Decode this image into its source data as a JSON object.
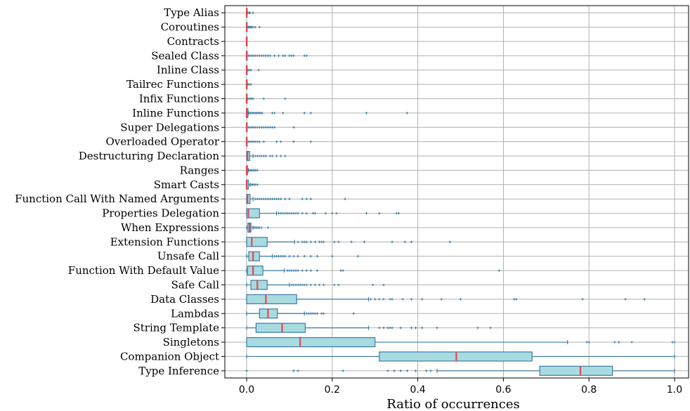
{
  "chart_data": {
    "type": "boxplot",
    "orientation": "horizontal",
    "xlabel": "Ratio of occurrences",
    "ylabel": "",
    "title": "",
    "xlim": [
      -0.05,
      1.03
    ],
    "xticks": [
      0.0,
      0.2,
      0.4,
      0.6,
      0.8,
      1.0
    ],
    "xtick_labels": [
      "0.0",
      "0.2",
      "0.4",
      "0.6",
      "0.8",
      "1.0"
    ],
    "grid": true,
    "colors": {
      "box_fill": "#a8dbe0",
      "box_edge": "#3a7ca5",
      "median": "#e8454d",
      "grid": "#b0b0b0"
    },
    "categories": [
      {
        "name": "Type Alias",
        "q1": 0.0,
        "median": 0.0,
        "q3": 0.0,
        "whisker_low": 0.0,
        "whisker_high": 0.0,
        "outliers": [
          0.003,
          0.006,
          0.008,
          0.015
        ]
      },
      {
        "name": "Coroutines",
        "q1": 0.0,
        "median": 0.0,
        "q3": 0.0,
        "whisker_low": 0.0,
        "whisker_high": 0.0,
        "outliers": [
          0.002,
          0.004,
          0.006,
          0.008,
          0.01,
          0.012,
          0.015,
          0.02,
          0.03
        ]
      },
      {
        "name": "Contracts",
        "q1": 0.0,
        "median": 0.0,
        "q3": 0.0,
        "whisker_low": 0.0,
        "whisker_high": 0.0,
        "outliers": []
      },
      {
        "name": "Sealed Class",
        "q1": 0.0,
        "median": 0.0,
        "q3": 0.0,
        "whisker_low": 0.0,
        "whisker_high": 0.0,
        "outliers": [
          0.004,
          0.008,
          0.012,
          0.016,
          0.02,
          0.025,
          0.03,
          0.035,
          0.04,
          0.045,
          0.05,
          0.055,
          0.065,
          0.075,
          0.085,
          0.09,
          0.1,
          0.105,
          0.11,
          0.135,
          0.14
        ]
      },
      {
        "name": "Inline Class",
        "q1": 0.0,
        "median": 0.0,
        "q3": 0.0,
        "whisker_low": 0.0,
        "whisker_high": 0.0,
        "outliers": [
          0.003,
          0.006,
          0.01,
          0.028
        ]
      },
      {
        "name": "Tailrec Functions",
        "q1": 0.0,
        "median": 0.0,
        "q3": 0.0,
        "whisker_low": 0.0,
        "whisker_high": 0.0,
        "outliers": [
          0.003,
          0.006,
          0.01
        ]
      },
      {
        "name": "Infix Functions",
        "q1": 0.0,
        "median": 0.0,
        "q3": 0.0,
        "whisker_low": 0.0,
        "whisker_high": 0.0,
        "outliers": [
          0.003,
          0.006,
          0.009,
          0.012,
          0.015,
          0.04,
          0.09
        ]
      },
      {
        "name": "Inline Functions",
        "q1": 0.0,
        "median": 0.0,
        "q3": 0.003,
        "whisker_low": 0.0,
        "whisker_high": 0.004,
        "outliers": [
          0.006,
          0.009,
          0.012,
          0.015,
          0.018,
          0.021,
          0.024,
          0.027,
          0.03,
          0.033,
          0.036,
          0.06,
          0.065,
          0.085,
          0.135,
          0.15,
          0.28,
          0.375
        ]
      },
      {
        "name": "Super Delegations",
        "q1": 0.0,
        "median": 0.0,
        "q3": 0.0,
        "whisker_low": 0.0,
        "whisker_high": 0.0,
        "outliers": [
          0.004,
          0.008,
          0.012,
          0.016,
          0.02,
          0.025,
          0.03,
          0.035,
          0.04,
          0.045,
          0.05,
          0.055,
          0.06,
          0.065,
          0.11
        ]
      },
      {
        "name": "Overloaded Operator",
        "q1": 0.0,
        "median": 0.0,
        "q3": 0.0,
        "whisker_low": 0.0,
        "whisker_high": 0.0,
        "outliers": [
          0.004,
          0.008,
          0.012,
          0.016,
          0.02,
          0.025,
          0.03,
          0.04,
          0.07,
          0.08,
          0.11,
          0.15
        ]
      },
      {
        "name": "Destructuring Declaration",
        "q1": 0.0,
        "median": 0.002,
        "q3": 0.007,
        "whisker_low": 0.0,
        "whisker_high": 0.015,
        "outliers": [
          0.02,
          0.025,
          0.03,
          0.035,
          0.04,
          0.045,
          0.055,
          0.06,
          0.07,
          0.08,
          0.09
        ]
      },
      {
        "name": "Ranges",
        "q1": 0.0,
        "median": 0.0,
        "q3": 0.002,
        "whisker_low": 0.0,
        "whisker_high": 0.004,
        "outliers": [
          0.006,
          0.009,
          0.012,
          0.015,
          0.018,
          0.021,
          0.025
        ]
      },
      {
        "name": "Smart Casts",
        "q1": 0.0,
        "median": 0.0,
        "q3": 0.004,
        "whisker_low": 0.0,
        "whisker_high": 0.008,
        "outliers": [
          0.011,
          0.014,
          0.017,
          0.02,
          0.025
        ]
      },
      {
        "name": "Function Call With Named Arguments",
        "q1": 0.0,
        "median": 0.002,
        "q3": 0.008,
        "whisker_low": 0.0,
        "whisker_high": 0.015,
        "outliers": [
          0.02,
          0.025,
          0.03,
          0.035,
          0.04,
          0.045,
          0.05,
          0.055,
          0.06,
          0.065,
          0.07,
          0.075,
          0.08,
          0.09,
          0.1,
          0.13,
          0.14,
          0.15,
          0.23
        ]
      },
      {
        "name": "Properties Delegation",
        "q1": 0.0,
        "median": 0.004,
        "q3": 0.03,
        "whisker_low": 0.0,
        "whisker_high": 0.07,
        "outliers": [
          0.075,
          0.08,
          0.085,
          0.09,
          0.095,
          0.1,
          0.105,
          0.11,
          0.115,
          0.12,
          0.13,
          0.14,
          0.155,
          0.16,
          0.185,
          0.2,
          0.21,
          0.28,
          0.31,
          0.35,
          0.355
        ]
      },
      {
        "name": "When Expressions",
        "q1": 0.003,
        "median": 0.007,
        "q3": 0.01,
        "whisker_low": 0.0,
        "whisker_high": 0.015,
        "outliers": [
          0.018,
          0.021,
          0.024,
          0.027,
          0.03,
          0.035,
          0.05
        ]
      },
      {
        "name": "Extension Functions",
        "q1": 0.0,
        "median": 0.012,
        "q3": 0.048,
        "whisker_low": 0.0,
        "whisker_high": 0.112,
        "outliers": [
          0.12,
          0.13,
          0.135,
          0.14,
          0.15,
          0.16,
          0.17,
          0.175,
          0.18,
          0.205,
          0.215,
          0.245,
          0.275,
          0.34,
          0.37,
          0.385,
          0.475
        ]
      },
      {
        "name": "Unsafe Call",
        "q1": 0.005,
        "median": 0.015,
        "q3": 0.03,
        "whisker_low": 0.0,
        "whisker_high": 0.06,
        "outliers": [
          0.065,
          0.07,
          0.075,
          0.08,
          0.085,
          0.09,
          0.1,
          0.11,
          0.12,
          0.135,
          0.15,
          0.165,
          0.2,
          0.26
        ]
      },
      {
        "name": "Function With Default Value",
        "q1": 0.002,
        "median": 0.015,
        "q3": 0.038,
        "whisker_low": 0.0,
        "whisker_high": 0.088,
        "outliers": [
          0.095,
          0.1,
          0.105,
          0.11,
          0.115,
          0.12,
          0.13,
          0.14,
          0.15,
          0.165,
          0.22,
          0.225,
          0.59
        ]
      },
      {
        "name": "Safe Call",
        "q1": 0.01,
        "median": 0.025,
        "q3": 0.048,
        "whisker_low": 0.0,
        "whisker_high": 0.1,
        "outliers": [
          0.105,
          0.11,
          0.115,
          0.12,
          0.125,
          0.13,
          0.135,
          0.14,
          0.15,
          0.16,
          0.17,
          0.18,
          0.205,
          0.215,
          0.295,
          0.32
        ]
      },
      {
        "name": "Data Classes",
        "q1": 0.0,
        "median": 0.045,
        "q3": 0.117,
        "whisker_low": 0.0,
        "whisker_high": 0.285,
        "outliers": [
          0.29,
          0.3,
          0.31,
          0.32,
          0.335,
          0.34,
          0.365,
          0.385,
          0.41,
          0.455,
          0.5,
          0.625,
          0.63,
          0.785,
          0.885,
          0.93
        ]
      },
      {
        "name": "Lambdas",
        "q1": 0.03,
        "median": 0.05,
        "q3": 0.072,
        "whisker_low": 0.0,
        "whisker_high": 0.135,
        "outliers": [
          0.14,
          0.145,
          0.15,
          0.155,
          0.16,
          0.165,
          0.175,
          0.18,
          0.25
        ]
      },
      {
        "name": "String Template",
        "q1": 0.022,
        "median": 0.083,
        "q3": 0.137,
        "whisker_low": 0.0,
        "whisker_high": 0.285,
        "outliers": [
          0.31,
          0.32,
          0.33,
          0.335,
          0.34,
          0.36,
          0.385,
          0.395,
          0.41,
          0.445,
          0.54,
          0.57
        ]
      },
      {
        "name": "Singletons",
        "q1": 0.0,
        "median": 0.125,
        "q3": 0.3,
        "whisker_low": 0.0,
        "whisker_high": 0.75,
        "outliers": [
          0.795,
          0.8,
          0.86,
          0.87,
          0.9,
          0.995,
          1.0
        ]
      },
      {
        "name": "Companion Object",
        "q1": 0.31,
        "median": 0.49,
        "q3": 0.667,
        "whisker_low": 0.0,
        "whisker_high": 1.0,
        "outliers": []
      },
      {
        "name": "Type Inference",
        "q1": 0.685,
        "median": 0.78,
        "q3": 0.855,
        "whisker_low": 0.445,
        "whisker_high": 1.0,
        "outliers": [
          0.0,
          0.11,
          0.12,
          0.225,
          0.33,
          0.345,
          0.36,
          0.375,
          0.395,
          0.42,
          0.43
        ]
      }
    ]
  }
}
